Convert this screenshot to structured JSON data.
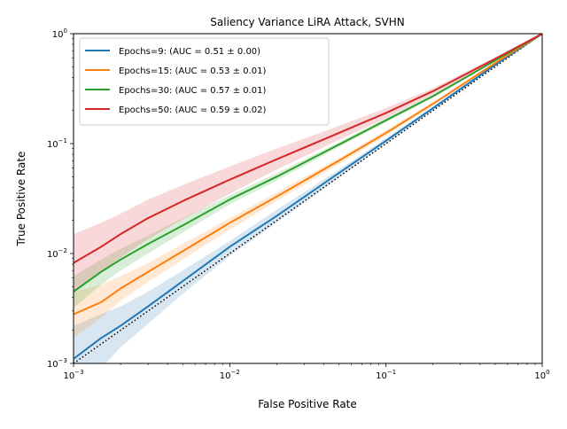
{
  "chart_data": {
    "type": "line",
    "title": "Saliency Variance LiRA Attack, SVHN",
    "xlabel": "False Positive Rate",
    "ylabel": "True Positive Rate",
    "xscale": "log",
    "yscale": "log",
    "xlim": [
      0.001,
      1
    ],
    "ylim": [
      0.001,
      1
    ],
    "grid": false,
    "legend_position": "top-left",
    "x_ticks": [
      {
        "value": 0.001,
        "base": "10",
        "exp": "−3"
      },
      {
        "value": 0.01,
        "base": "10",
        "exp": "−2"
      },
      {
        "value": 0.1,
        "base": "10",
        "exp": "−1"
      },
      {
        "value": 1,
        "base": "10",
        "exp": "0"
      }
    ],
    "y_ticks": [
      {
        "value": 0.001,
        "base": "10",
        "exp": "−3"
      },
      {
        "value": 0.01,
        "base": "10",
        "exp": "−2"
      },
      {
        "value": 0.1,
        "base": "10",
        "exp": "−1"
      },
      {
        "value": 1,
        "base": "10",
        "exp": "0"
      }
    ],
    "reference_line": {
      "style": "dotted",
      "color": "#000000",
      "points": [
        [
          0.001,
          0.001
        ],
        [
          1,
          1
        ]
      ]
    },
    "series": [
      {
        "name": "Epochs=9: (AUC = 0.51 ± 0.00)",
        "color": "#1f77b4",
        "x": [
          0.001,
          0.0015,
          0.002,
          0.003,
          0.005,
          0.01,
          0.02,
          0.05,
          0.1,
          0.2,
          0.5,
          1
        ],
        "y": [
          0.0011,
          0.0017,
          0.0022,
          0.0033,
          0.0056,
          0.0115,
          0.022,
          0.054,
          0.106,
          0.21,
          0.52,
          1
        ],
        "lower": [
          0.0004,
          0.0009,
          0.0014,
          0.0023,
          0.0043,
          0.0095,
          0.019,
          0.049,
          0.099,
          0.2,
          0.51,
          1
        ],
        "upper": [
          0.0022,
          0.0028,
          0.0033,
          0.0045,
          0.007,
          0.013,
          0.025,
          0.058,
          0.112,
          0.22,
          0.53,
          1
        ]
      },
      {
        "name": "Epochs=15: (AUC = 0.53 ± 0.01)",
        "color": "#ff7f0e",
        "x": [
          0.001,
          0.0015,
          0.002,
          0.003,
          0.005,
          0.01,
          0.02,
          0.05,
          0.1,
          0.2,
          0.5,
          1
        ],
        "y": [
          0.0028,
          0.0036,
          0.0048,
          0.0068,
          0.0105,
          0.019,
          0.033,
          0.07,
          0.125,
          0.23,
          0.54,
          1
        ],
        "lower": [
          0.0017,
          0.0026,
          0.0037,
          0.0055,
          0.0088,
          0.0165,
          0.03,
          0.065,
          0.118,
          0.225,
          0.53,
          1
        ],
        "upper": [
          0.0045,
          0.0052,
          0.0062,
          0.0082,
          0.0122,
          0.021,
          0.036,
          0.074,
          0.132,
          0.24,
          0.55,
          1
        ]
      },
      {
        "name": "Epochs=30: (AUC = 0.57 ± 0.01)",
        "color": "#2ca02c",
        "x": [
          0.001,
          0.0015,
          0.002,
          0.003,
          0.005,
          0.01,
          0.02,
          0.05,
          0.1,
          0.2,
          0.5,
          1
        ],
        "y": [
          0.0045,
          0.0068,
          0.0088,
          0.0122,
          0.018,
          0.031,
          0.05,
          0.098,
          0.163,
          0.27,
          0.57,
          1
        ],
        "lower": [
          0.0032,
          0.0052,
          0.007,
          0.01,
          0.0155,
          0.028,
          0.046,
          0.093,
          0.156,
          0.262,
          0.56,
          1
        ],
        "upper": [
          0.0062,
          0.0088,
          0.011,
          0.0145,
          0.021,
          0.034,
          0.054,
          0.103,
          0.17,
          0.28,
          0.58,
          1
        ]
      },
      {
        "name": "Epochs=50: (AUC = 0.59 ± 0.02)",
        "color": "#d62728",
        "x": [
          0.001,
          0.0015,
          0.002,
          0.003,
          0.005,
          0.01,
          0.02,
          0.05,
          0.1,
          0.2,
          0.5,
          1
        ],
        "y": [
          0.0082,
          0.0115,
          0.015,
          0.021,
          0.03,
          0.047,
          0.072,
          0.125,
          0.19,
          0.3,
          0.59,
          1
        ],
        "lower": [
          0.0045,
          0.0068,
          0.0092,
          0.0135,
          0.0205,
          0.035,
          0.058,
          0.108,
          0.17,
          0.28,
          0.57,
          1
        ],
        "upper": [
          0.015,
          0.019,
          0.023,
          0.031,
          0.042,
          0.062,
          0.09,
          0.145,
          0.21,
          0.32,
          0.61,
          1
        ]
      }
    ]
  }
}
